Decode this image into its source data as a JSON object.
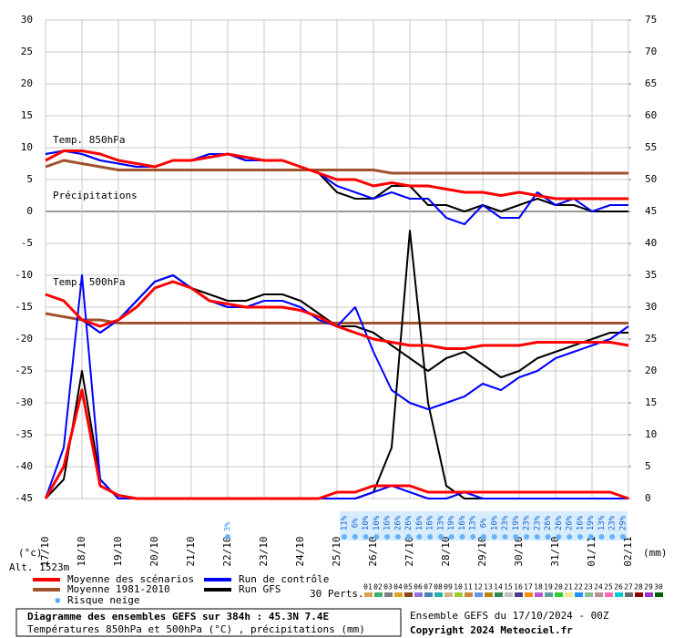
{
  "chart_data": {
    "type": "line",
    "ylabel": "(°c)",
    "y2label": "(mm)",
    "altitude": "Alt. 1523m",
    "panel_labels": [
      "Temp. 850hPa",
      "Précipitations",
      "Temp. 500hPa"
    ],
    "ylim": [
      -45,
      30
    ],
    "yticks": [
      30,
      25,
      20,
      15,
      10,
      5,
      0,
      -5,
      -10,
      -15,
      -20,
      -25,
      -30,
      -35,
      -40,
      -45
    ],
    "y2lim": [
      0,
      75
    ],
    "y2ticks": [
      75,
      70,
      65,
      60,
      55,
      50,
      45,
      40,
      35,
      30,
      25,
      20,
      15,
      10,
      5,
      0
    ],
    "xtick_labels": [
      "17/10",
      "18/10",
      "19/10",
      "20/10",
      "21/10",
      "22/10",
      "23/10",
      "24/10",
      "25/10",
      "26/10",
      "27/10",
      "28/10",
      "29/10",
      "30/10",
      "31/10",
      "01/11",
      "02/11"
    ],
    "grid": true,
    "series": [
      {
        "name": "Moyenne des scénarios",
        "color": "#ff0000",
        "t850": [
          8,
          9.5,
          9.5,
          9,
          8,
          7.5,
          7,
          8,
          8,
          8.5,
          9,
          8.5,
          8,
          8,
          7,
          6,
          5,
          5,
          4,
          4.5,
          4,
          4,
          3.5,
          3,
          3,
          2.5,
          3,
          2.5,
          2,
          2,
          2,
          2,
          2
        ],
        "t500": [
          -13,
          -14,
          -17,
          -18,
          -17,
          -15,
          -12,
          -11,
          -12,
          -14,
          -14.5,
          -15,
          -15,
          -15,
          -15.5,
          -16.5,
          -18,
          -19,
          -20,
          -20.5,
          -21,
          -21,
          -21.5,
          -21.5,
          -21,
          -21,
          -21,
          -20.5,
          -20.5,
          -20.5,
          -20.5,
          -20.5,
          -21
        ],
        "precip": [
          0,
          5,
          17,
          2,
          0.5,
          0,
          0,
          0,
          0,
          0,
          0,
          0,
          0,
          0,
          0,
          0,
          1,
          1,
          2,
          2,
          2,
          1,
          1,
          1,
          1,
          1,
          1,
          1,
          1,
          1,
          1,
          1,
          0
        ]
      },
      {
        "name": "Moyenne 1981-2010",
        "color": "#a0522d",
        "t850": [
          7,
          8,
          7.5,
          7,
          6.5,
          6.5,
          6.5,
          6.5,
          6.5,
          6.5,
          6.5,
          6.5,
          6.5,
          6.5,
          6.5,
          6.5,
          6.5,
          6.5,
          6.5,
          6,
          6,
          6,
          6,
          6,
          6,
          6,
          6,
          6,
          6,
          6,
          6,
          6,
          6
        ],
        "t500": [
          -16,
          -16.5,
          -17,
          -17,
          -17.5,
          -17.5,
          -17.5,
          -17.5,
          -17.5,
          -17.5,
          -17.5,
          -17.5,
          -17.5,
          -17.5,
          -17.5,
          -17.5,
          -17.5,
          -17.5,
          -17.5,
          -17.5,
          -17.5,
          -17.5,
          -17.5,
          -17.5,
          -17.5,
          -17.5,
          -17.5,
          -17.5,
          -17.5,
          -17.5,
          -17.5,
          -17.5,
          -17.5
        ]
      },
      {
        "name": "Run de contrôle",
        "color": "#0000ff",
        "t850": [
          9,
          9.5,
          9,
          8,
          7.5,
          7,
          7,
          8,
          8,
          9,
          9,
          8,
          8,
          8,
          7,
          6,
          4,
          3,
          2,
          3,
          2,
          2,
          -1,
          -2,
          1,
          -1,
          -1,
          3,
          1,
          2,
          0,
          1,
          1
        ],
        "t500": [
          -13,
          -14,
          -17,
          -19,
          -17,
          -14,
          -11,
          -10,
          -12,
          -14,
          -15,
          -15,
          -14,
          -14,
          -15,
          -17,
          -18,
          -15,
          -22,
          -28,
          -30,
          -31,
          -30,
          -29,
          -27,
          -28,
          -26,
          -25,
          -23,
          -22,
          -21,
          -20,
          -18
        ],
        "precip": [
          0,
          8,
          35,
          3,
          0,
          0,
          0,
          0,
          0,
          0,
          0,
          0,
          0,
          0,
          0,
          0,
          0,
          0,
          1,
          2,
          1,
          0,
          0,
          1,
          0,
          0,
          0,
          0,
          0,
          0,
          0,
          0,
          0
        ]
      },
      {
        "name": "Run GFS",
        "color": "#000000",
        "t850": [
          9,
          9.5,
          9,
          8,
          7.5,
          7,
          7,
          8,
          8,
          9,
          9,
          8,
          8,
          8,
          7,
          6,
          3,
          2,
          2,
          4,
          4,
          1,
          1,
          0,
          1,
          0,
          1,
          2,
          1,
          1,
          0,
          0,
          0
        ],
        "t500": [
          -13,
          -14,
          -17,
          -19,
          -17,
          -14,
          -11,
          -10,
          -12,
          -13,
          -14,
          -14,
          -13,
          -13,
          -14,
          -16,
          -18,
          -18,
          -19,
          -21,
          -23,
          -25,
          -23,
          -22,
          -24,
          -26,
          -25,
          -23,
          -22,
          -21,
          -20,
          -19,
          -19
        ],
        "precip": [
          0,
          3,
          20,
          3,
          0,
          0,
          0,
          0,
          0,
          0,
          0,
          0,
          0,
          0,
          0,
          0,
          0,
          0,
          1,
          8,
          42,
          15,
          2,
          0,
          0,
          0,
          0,
          0,
          0,
          0,
          0,
          0,
          0
        ]
      }
    ],
    "snow_label": "Risque neige",
    "snow_early": {
      "value": 3,
      "label": "3%"
    },
    "snow_risk": {
      "values": [
        11,
        6,
        10,
        10,
        16,
        26,
        26,
        16,
        16,
        13,
        19,
        16,
        13,
        6,
        10,
        23,
        19,
        23,
        23,
        26,
        26,
        26,
        16,
        19,
        13,
        23,
        29
      ],
      "value_labels": [
        "11%",
        "6%",
        "10%",
        "10%",
        "16%",
        "26%",
        "26%",
        "16%",
        "16%",
        "13%",
        "19%",
        "16%",
        "13%",
        "6%",
        "10%",
        "23%",
        "19%",
        "23%",
        "23%",
        "26%",
        "26%",
        "26%",
        "16%",
        "19%",
        "13%",
        "23%",
        "29%"
      ]
    },
    "perturbations_label": "30 Perts.",
    "perturbations": [
      "01",
      "02",
      "03",
      "04",
      "05",
      "06",
      "07",
      "08",
      "09",
      "10",
      "11",
      "12",
      "13",
      "14",
      "15",
      "16",
      "17",
      "18",
      "19",
      "20",
      "21",
      "22",
      "23",
      "24",
      "25",
      "26",
      "27",
      "28",
      "29",
      "30"
    ],
    "perturbation_colors": [
      "#e0a050",
      "#3cb371",
      "#808080",
      "#daa520",
      "#8b4513",
      "#9370db",
      "#4682b4",
      "#20b2aa",
      "#d2b48c",
      "#9acd32",
      "#cd853f",
      "#6495ed",
      "#b8860b",
      "#2e8b57",
      "#c0c0c0",
      "#483d8b",
      "#ff8c00",
      "#ba55d3",
      "#5f9ea0",
      "#32cd32",
      "#f0e68c",
      "#1e90ff",
      "#8fbc8f",
      "#bc8f8f",
      "#ff69b4",
      "#00ced1",
      "#696969",
      "#8b0000",
      "#9932cc",
      "#006400"
    ],
    "footer_title": "Diagramme des ensembles GEFS sur 384h : 45.3N 7.4E",
    "footer_subtitle": "Températures 850hPa et 500hPa (°C) , précipitations (mm)",
    "run_info": "Ensemble GEFS du 17/10/2024 - 00Z",
    "copyright": "Copyright 2024 Meteociel.fr"
  }
}
